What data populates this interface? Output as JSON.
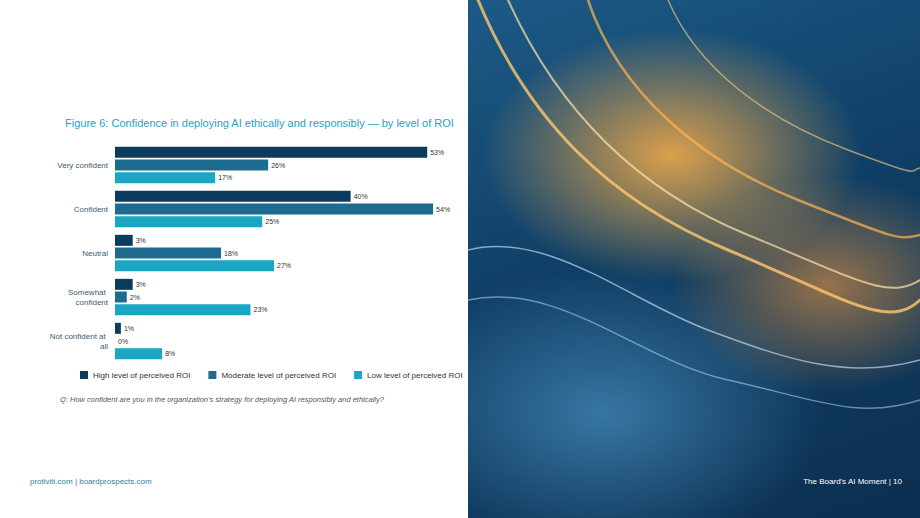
{
  "chart_data": {
    "type": "bar",
    "orientation": "horizontal",
    "title": "Figure 6: Confidence in deploying AI ethically and responsibly — by level of ROI",
    "note": "Q: How confident are you in the organization’s strategy for deploying AI responsibly and ethically?",
    "categories": [
      "Very confident",
      "Confident",
      "Neutral",
      "Somewhat confident",
      "Not confident at all"
    ],
    "series": [
      {
        "name": "High level of perceived ROI",
        "color": "#0d3b5e",
        "values": [
          53,
          40,
          3,
          3,
          1
        ],
        "value_labels": [
          "53%",
          "40%",
          "3%",
          "3%",
          "1%"
        ]
      },
      {
        "name": "Moderate level of perceived ROI",
        "color": "#1d6b8f",
        "values": [
          26,
          54,
          18,
          2,
          0
        ],
        "value_labels": [
          "26%",
          "54%",
          "18%",
          "2%",
          "0%"
        ]
      },
      {
        "name": "Low level of perceived ROI",
        "color": "#1ba6c4",
        "values": [
          17,
          25,
          27,
          23,
          8
        ],
        "value_labels": [
          "17%",
          "25%",
          "27%",
          "23%",
          "8%"
        ]
      }
    ],
    "xlim": [
      0,
      55
    ],
    "data_labels": true,
    "tick_labels": "y",
    "grid": false,
    "legend": "bottom"
  },
  "page": {
    "footer_left": "protiviti.com | boardprospects.com",
    "footer_right": "The Board's AI Moment | 10"
  }
}
